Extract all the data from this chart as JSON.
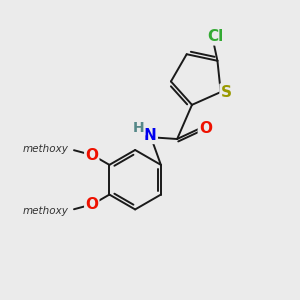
{
  "background_color": "#ebebeb",
  "bond_color": "#1a1a1a",
  "atoms": {
    "S": {
      "color": "#999900",
      "fontsize": 11
    },
    "Cl": {
      "color": "#33aa33",
      "fontsize": 11
    },
    "O": {
      "color": "#ee1100",
      "fontsize": 11
    },
    "N": {
      "color": "#0000ee",
      "fontsize": 11
    },
    "H": {
      "color": "#558888",
      "fontsize": 10
    }
  },
  "figsize": [
    3.0,
    3.0
  ],
  "dpi": 100
}
